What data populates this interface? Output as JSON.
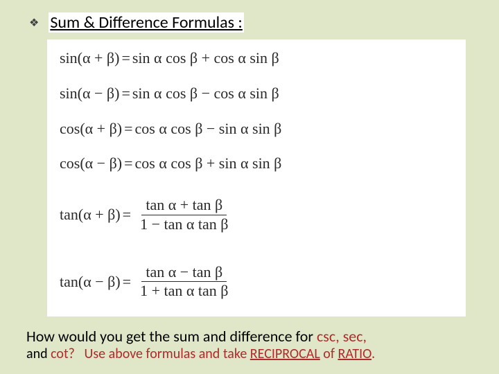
{
  "header": {
    "bullet": "❖",
    "title": "Sum & Difference Formulas :"
  },
  "formulas": {
    "f1": {
      "lhs": "sin(α + β)",
      "rhs": "sin α cos β + cos α sin β"
    },
    "f2": {
      "lhs": "sin(α − β)",
      "rhs": "sin α cos β − cos α sin β"
    },
    "f3": {
      "lhs": "cos(α + β)",
      "rhs": "cos α cos β − sin α sin β"
    },
    "f4": {
      "lhs": "cos(α − β)",
      "rhs": "cos α cos β + sin α sin β"
    },
    "f5": {
      "lhs": "tan(α + β)",
      "num": "tan α + tan β",
      "den": "1 − tan α tan β"
    },
    "f6": {
      "lhs": "tan(α − β)",
      "num": "tan α − tan β",
      "den": "1 + tan α tan β"
    }
  },
  "footer": {
    "q_pre": "How would you get the sum and difference for ",
    "csc": "csc",
    "sep1": ", ",
    "sec": "sec",
    "sep2": ",",
    "and": "and ",
    "cot": "cot",
    "qmark": "?",
    "ans_pre": "Use above formulas and take ",
    "reciprocal": "RECIPROCAL",
    "of": " of ",
    "ratio": "RATIO",
    "period": "."
  },
  "style": {
    "bg_color": "#e0e6c8",
    "box_bg": "#ffffff",
    "text_color": "#2a2a2a",
    "highlight_color": "#b02a2a",
    "title_fontsize": 24,
    "formula_fontsize": 22,
    "footer_fontsize": 22
  }
}
